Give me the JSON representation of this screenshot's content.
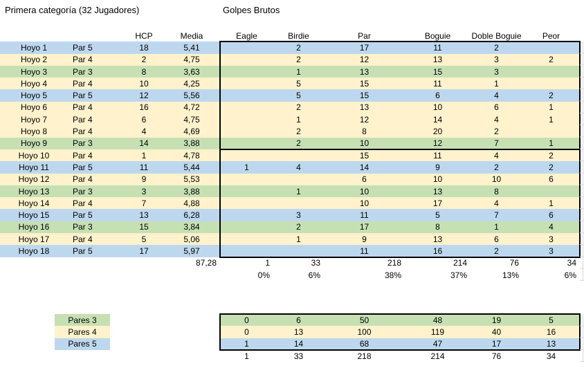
{
  "titles": {
    "left": "Primera categoría (32 Jugadores)",
    "right": "Golpes Brutos"
  },
  "colors": {
    "par3": "#C6E0B4",
    "par4": "#FFF2CC",
    "par5": "#BDD7EE",
    "border": "#000000",
    "gridline": "#D9D9D9"
  },
  "table": {
    "headers": {
      "hcp": "HCP",
      "media": "Media",
      "result_columns": [
        "Eagle",
        "Birdie",
        "Par",
        "Boguie",
        "Doble Boguie",
        "Peor"
      ]
    },
    "rows": [
      {
        "hole": "Hoyo 1",
        "par_label": "Par 5",
        "par": "par5",
        "hcp": "18",
        "media": "5,41",
        "results": [
          "",
          "2",
          "17",
          "11",
          "2",
          ""
        ]
      },
      {
        "hole": "Hoyo 2",
        "par_label": "Par 4",
        "par": "par4",
        "hcp": "2",
        "media": "4,75",
        "results": [
          "",
          "2",
          "12",
          "13",
          "3",
          "2"
        ]
      },
      {
        "hole": "Hoyo 3",
        "par_label": "Par 3",
        "par": "par3",
        "hcp": "8",
        "media": "3,63",
        "results": [
          "",
          "1",
          "13",
          "15",
          "3",
          ""
        ]
      },
      {
        "hole": "Hoyo 4",
        "par_label": "Par 4",
        "par": "par4",
        "hcp": "10",
        "media": "4,25",
        "results": [
          "",
          "5",
          "15",
          "11",
          "1",
          ""
        ]
      },
      {
        "hole": "Hoyo 5",
        "par_label": "Par 5",
        "par": "par5",
        "hcp": "12",
        "media": "5,56",
        "results": [
          "",
          "5",
          "15",
          "6",
          "4",
          "2"
        ]
      },
      {
        "hole": "Hoyo 6",
        "par_label": "Par 4",
        "par": "par4",
        "hcp": "16",
        "media": "4,72",
        "results": [
          "",
          "2",
          "13",
          "10",
          "6",
          "1"
        ]
      },
      {
        "hole": "Hoyo 7",
        "par_label": "Par 4",
        "par": "par4",
        "hcp": "6",
        "media": "4,75",
        "results": [
          "",
          "1",
          "12",
          "14",
          "4",
          "1"
        ]
      },
      {
        "hole": "Hoyo 8",
        "par_label": "Par 4",
        "par": "par4",
        "hcp": "4",
        "media": "4,69",
        "results": [
          "",
          "2",
          "8",
          "20",
          "2",
          ""
        ]
      },
      {
        "hole": "Hoyo 9",
        "par_label": "Par 3",
        "par": "par3",
        "hcp": "14",
        "media": "3,88",
        "results": [
          "",
          "2",
          "10",
          "12",
          "7",
          "1"
        ]
      },
      {
        "hole": "Hoyo 10",
        "par_label": "Par 4",
        "par": "par4",
        "hcp": "1",
        "media": "4,78",
        "results": [
          "",
          "",
          "15",
          "11",
          "4",
          "2"
        ]
      },
      {
        "hole": "Hoyo 11",
        "par_label": "Par 5",
        "par": "par5",
        "hcp": "11",
        "media": "5,44",
        "results": [
          "1",
          "4",
          "14",
          "9",
          "2",
          "2"
        ]
      },
      {
        "hole": "Hoyo 12",
        "par_label": "Par 4",
        "par": "par4",
        "hcp": "9",
        "media": "5,53",
        "results": [
          "",
          "",
          "6",
          "10",
          "10",
          "6"
        ]
      },
      {
        "hole": "Hoyo 13",
        "par_label": "Par 3",
        "par": "par3",
        "hcp": "3",
        "media": "3,88",
        "results": [
          "",
          "1",
          "10",
          "13",
          "8",
          ""
        ]
      },
      {
        "hole": "Hoyo 14",
        "par_label": "Par 4",
        "par": "par4",
        "hcp": "7",
        "media": "4,88",
        "results": [
          "",
          "",
          "10",
          "17",
          "4",
          "1"
        ]
      },
      {
        "hole": "Hoyo 15",
        "par_label": "Par 5",
        "par": "par5",
        "hcp": "13",
        "media": "6,28",
        "results": [
          "",
          "3",
          "11",
          "5",
          "7",
          "6"
        ]
      },
      {
        "hole": "Hoyo 16",
        "par_label": "Par 3",
        "par": "par3",
        "hcp": "15",
        "media": "3,84",
        "results": [
          "",
          "2",
          "17",
          "8",
          "1",
          "4"
        ]
      },
      {
        "hole": "Hoyo 17",
        "par_label": "Par 4",
        "par": "par4",
        "hcp": "5",
        "media": "5,06",
        "results": [
          "",
          "1",
          "9",
          "13",
          "6",
          "3"
        ]
      },
      {
        "hole": "Hoyo 18",
        "par_label": "Par 5",
        "par": "par5",
        "hcp": "17",
        "media": "5,97",
        "results": [
          "",
          "",
          "11",
          "16",
          "2",
          "3"
        ]
      }
    ],
    "totals": {
      "media_sum": "87,28",
      "result_sums": [
        "1",
        "33",
        "218",
        "214",
        "76",
        "34"
      ],
      "result_percentages": [
        "0%",
        "6%",
        "38%",
        "37%",
        "13%",
        "6%"
      ]
    }
  },
  "legend": {
    "items": [
      {
        "label": "Pares 3",
        "par": "par3"
      },
      {
        "label": "Pares 4",
        "par": "par4"
      },
      {
        "label": "Pares 5",
        "par": "par5"
      }
    ]
  },
  "summary": {
    "rows": [
      {
        "par": "par3",
        "values": [
          "0",
          "6",
          "50",
          "48",
          "19",
          "5"
        ]
      },
      {
        "par": "par4",
        "values": [
          "0",
          "13",
          "100",
          "119",
          "40",
          "16"
        ]
      },
      {
        "par": "par5",
        "values": [
          "1",
          "14",
          "68",
          "47",
          "17",
          "13"
        ]
      }
    ],
    "totals": [
      "1",
      "33",
      "218",
      "214",
      "76",
      "34"
    ]
  }
}
